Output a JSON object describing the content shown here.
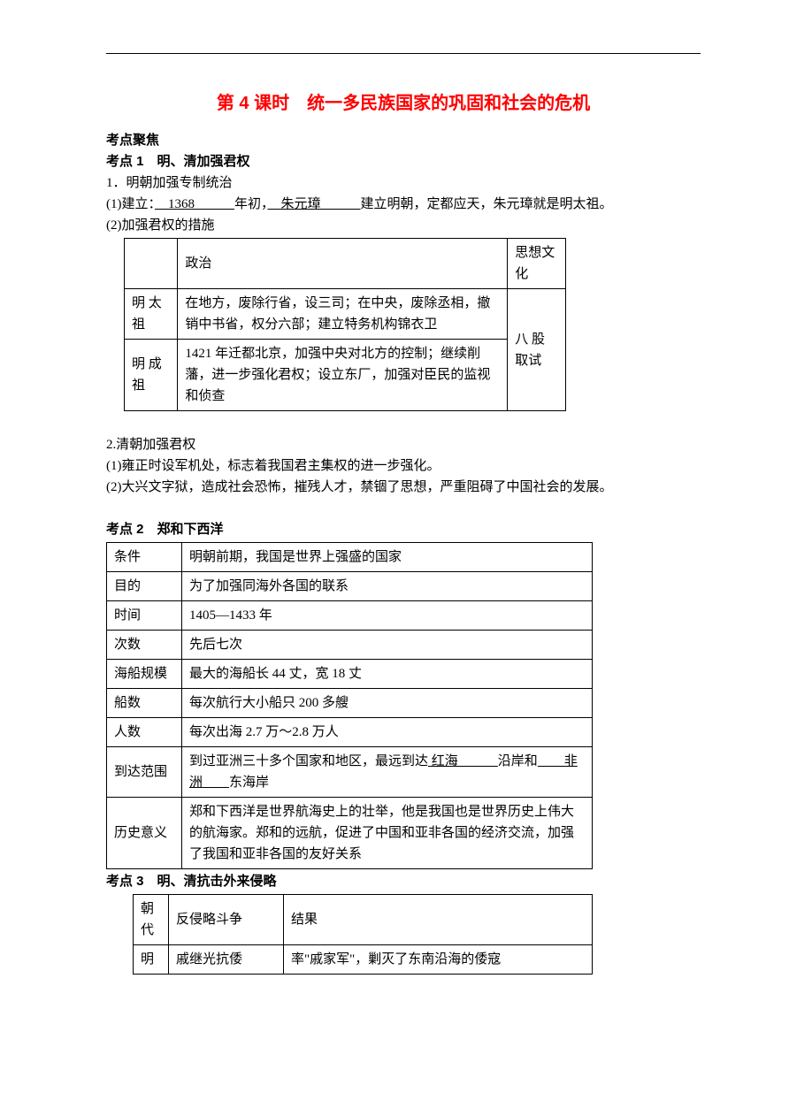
{
  "title": "第 4 课时　统一多民族国家的巩固和社会的危机",
  "s1_head": "考点聚焦",
  "kp1": "考点 1　明、清加强君权",
  "p1": "1．明朝加强专制统治",
  "p2a": "(1)建立：",
  "p2b1": "　1368　　　",
  "p2c": "年初，",
  "p2b2": "　朱元璋　　　",
  "p2d": "建立明朝，定都应天，朱元璋就是明太祖。",
  "p3": "(2)加强君权的措施",
  "t1": {
    "h_pol": "政治",
    "h_idea": "思想文化",
    "r1c1": "明 太祖",
    "r1c2": "在地方，废除行省，设三司；在中央，废除丞相，撤销中书省，权分六部；建立特务机构锦衣卫",
    "r2c1": "明 成祖",
    "r2c2": "1421 年迁都北京，加强中央对北方的控制；继续削藩，进一步强化君权；设立东厂，加强对臣民的监视和侦查",
    "merge": "八 股 取试"
  },
  "p4": "2.清朝加强君权",
  "p5": "(1)雍正时设军机处，标志着我国君主集权的进一步强化。",
  "p6": "(2)大兴文字狱，造成社会恐怖，摧残人才，禁锢了思想，严重阻碍了中国社会的发展。",
  "kp2": "考点 2　郑和下西洋",
  "t2": {
    "rows": [
      [
        "条件",
        "明朝前期，我国是世界上强盛的国家"
      ],
      [
        "目的",
        "为了加强同海外各国的联系"
      ],
      [
        "时间",
        "1405—1433 年"
      ],
      [
        "次数",
        "先后七次"
      ],
      [
        "海船规模",
        "最大的海船长 44 丈，宽 18 丈"
      ],
      [
        "船数",
        "每次航行大小船只 200 多艘"
      ],
      [
        "人数",
        "每次出海 2.7 万～2.8 万人"
      ]
    ],
    "r8c1": "到达范围",
    "r8a": "到过亚洲三十多个国家和地区，最远到达",
    "r8b1": " 红海　　　",
    "r8c": "沿岸和",
    "r8b2": "　　非洲　　",
    "r8d": "东海岸",
    "r9c1": "历史意义",
    "r9c2": "郑和下西洋是世界航海史上的壮举，他是我国也是世界历史上伟大的航海家。郑和的远航，促进了中国和亚非各国的经济交流，加强了我国和亚非各国的友好关系"
  },
  "kp3": "考点 3　明、清抗击外来侵略",
  "t3": {
    "h1": "朝代",
    "h2": "反侵略斗争",
    "h3": "结果",
    "r1c1": "明",
    "r1c2": "戚继光抗倭",
    "r1c3": "率\"戚家军\"，剿灭了东南沿海的倭寇"
  }
}
